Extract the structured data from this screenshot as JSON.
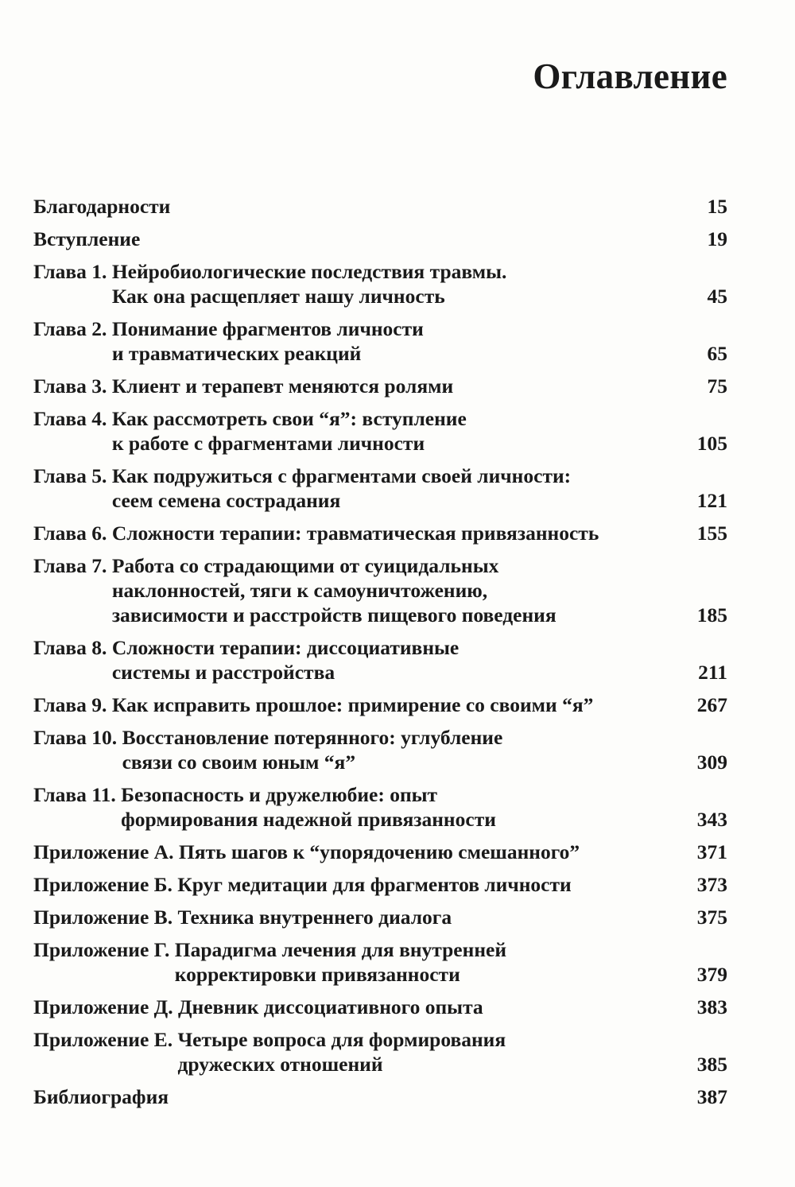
{
  "title": "Оглавление",
  "entries": [
    {
      "label": "",
      "lines": [
        "Благодарности"
      ],
      "page": "15"
    },
    {
      "label": "",
      "lines": [
        "Вступление"
      ],
      "page": "19"
    },
    {
      "label": "Глава 1. ",
      "lines": [
        "Нейробиологические последствия травмы.",
        "Как она расщепляет нашу личность"
      ],
      "page": "45"
    },
    {
      "label": "Глава 2. ",
      "lines": [
        "Понимание фрагментов личности",
        "и травматических реакций"
      ],
      "page": "65"
    },
    {
      "label": "Глава 3. ",
      "lines": [
        "Клиент и терапевт меняются ролями"
      ],
      "page": "75"
    },
    {
      "label": "Глава 4. ",
      "lines": [
        "Как рассмотреть свои “я”: вступление",
        "к работе с фрагментами личности"
      ],
      "page": "105"
    },
    {
      "label": "Глава 5. ",
      "lines": [
        "Как подружиться с фрагментами своей личности:",
        "сеем семена сострадания"
      ],
      "page": "121"
    },
    {
      "label": "Глава 6. ",
      "lines": [
        "Сложности терапии: травматическая привязанность"
      ],
      "page": "155"
    },
    {
      "label": "Глава 7. ",
      "lines": [
        "Работа со страдающими от суицидальных",
        "наклонностей, тяги к самоуничтожению,",
        "зависимости и расстройств пищевого поведения"
      ],
      "page": "185"
    },
    {
      "label": "Глава 8. ",
      "lines": [
        "Сложности терапии: диссоциативные",
        "системы и расстройства"
      ],
      "page": "211"
    },
    {
      "label": "Глава 9. ",
      "lines": [
        "Как исправить прошлое: примирение со своими “я”"
      ],
      "page": "267"
    },
    {
      "label": "Глава 10. ",
      "lines": [
        "Восстановление потерянного: углубление",
        "связи со своим юным “я”"
      ],
      "page": "309"
    },
    {
      "label": "Глава 11. ",
      "lines": [
        "Безопасность и дружелюбие: опыт",
        "формирования надежной привязанности"
      ],
      "page": "343"
    },
    {
      "label": "Приложение А. ",
      "lines": [
        "Пять шагов к “упорядочению смешанного”"
      ],
      "page": "371"
    },
    {
      "label": "Приложение Б. ",
      "lines": [
        "Круг медитации для фрагментов личности"
      ],
      "page": "373"
    },
    {
      "label": "Приложение В. ",
      "lines": [
        "Техника внутреннего диалога"
      ],
      "page": "375"
    },
    {
      "label": "Приложение Г. ",
      "lines": [
        "Парадигма лечения для внутренней",
        "корректировки привязанности"
      ],
      "page": "379"
    },
    {
      "label": "Приложение Д. ",
      "lines": [
        "Дневник диссоциативного опыта"
      ],
      "page": "383"
    },
    {
      "label": "Приложение Е. ",
      "lines": [
        "Четыре вопроса для формирования",
        "дружеских отношений"
      ],
      "page": "385"
    },
    {
      "label": "",
      "lines": [
        "Библиография"
      ],
      "page": "387"
    }
  ]
}
